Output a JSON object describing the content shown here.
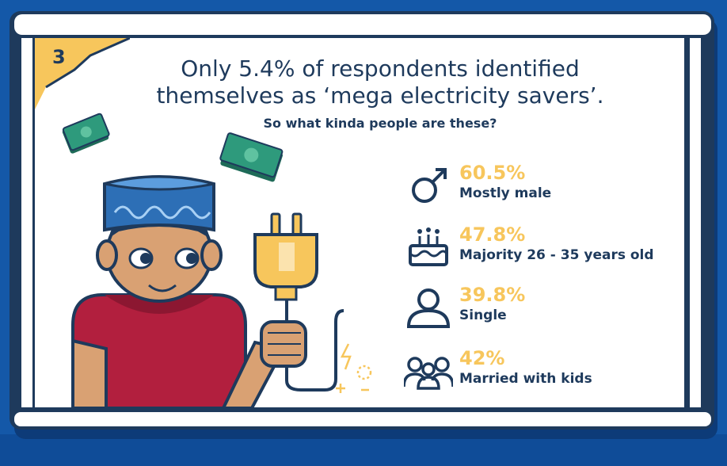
{
  "badge": {
    "number": "3"
  },
  "heading": {
    "line1": "Only 5.4% of respondents identified",
    "line2": "themselves as ‘mega electricity savers’.",
    "subtitle": "So what kinda people are these?"
  },
  "stats": [
    {
      "icon": "male-symbol-icon",
      "percent": "60.5%",
      "label": "Mostly male"
    },
    {
      "icon": "birthday-cake-icon",
      "percent": "47.8%",
      "label": "Majority 26 - 35 years old"
    },
    {
      "icon": "single-person-icon",
      "percent": "39.8%",
      "label": "Single"
    },
    {
      "icon": "family-icon",
      "percent": "42%",
      "label": "Married with kids"
    }
  ],
  "colors": {
    "background": "#1458a8",
    "navy": "#1e3a5c",
    "accent_yellow": "#f7c65c",
    "shirt_red": "#b21f3e",
    "cap_blue": "#2d6fb6",
    "skin": "#d9a173",
    "money_green": "#2e9a7c"
  }
}
